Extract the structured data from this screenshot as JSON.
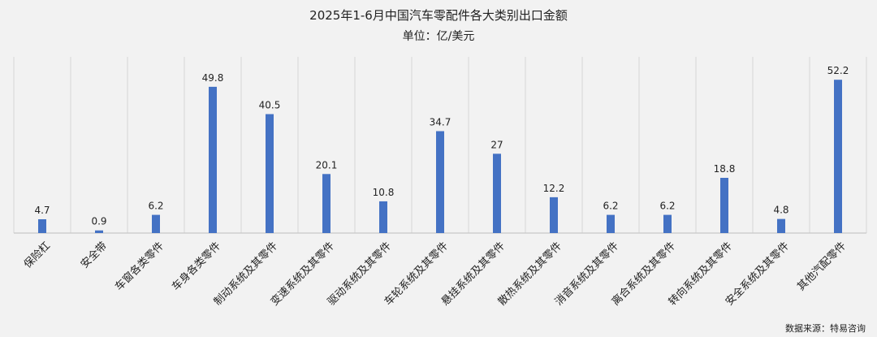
{
  "chart_data": {
    "type": "bar",
    "title": "2025年1-6月中国汽车零配件各大类别出口金额",
    "subtitle": "单位：亿/美元",
    "categories": [
      "保险杠",
      "安全带",
      "车窗各类零件",
      "车身各类零件",
      "制动系统及其零件",
      "变速系统及其零件",
      "驱动系统及其零件",
      "车轮系统及其零件",
      "悬挂系统及其零件",
      "散热系统及其零件",
      "消音系统及其零件",
      "离合系统及其零件",
      "转向系统及其零件",
      "安全系统及其零件",
      "其他汽配零件"
    ],
    "values": [
      4.7,
      0.9,
      6.2,
      49.8,
      40.5,
      20.1,
      10.8,
      34.7,
      27,
      12.2,
      6.2,
      6.2,
      18.8,
      4.8,
      52.2
    ],
    "value_labels": [
      "4.7",
      "0.9",
      "6.2",
      "49.8",
      "40.5",
      "20.1",
      "10.8",
      "34.7",
      "27",
      "12.2",
      "6.2",
      "6.2",
      "18.8",
      "4.8",
      "52.2"
    ],
    "ylim": [
      0,
      60
    ],
    "grid": "vertical-separators",
    "bar_color": "#4472c4",
    "source": "数据来源：特易咨询"
  }
}
